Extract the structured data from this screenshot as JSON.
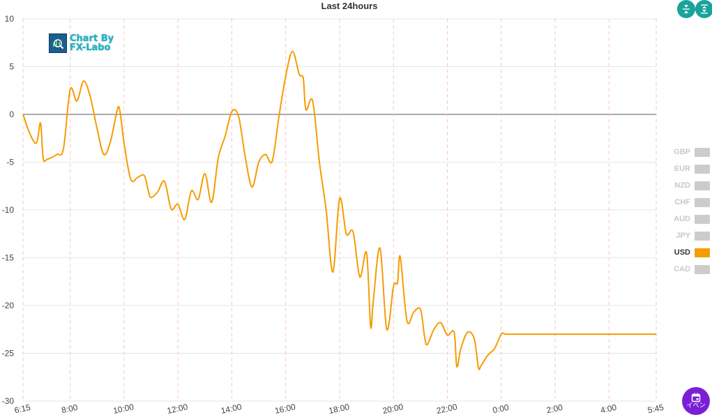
{
  "chart_data": {
    "type": "line",
    "title": "Last 24hours",
    "ylim": [
      -30,
      10
    ],
    "y_ticks": [
      "10",
      "5",
      "0",
      "-5",
      "-10",
      "-15",
      "-20",
      "-25",
      "-30"
    ],
    "x_ticks": [
      "6:15",
      "8:00",
      "10:00",
      "12:00",
      "14:00",
      "16:00",
      "18:00",
      "20:00",
      "22:00",
      "0:00",
      "2:00",
      "4:00",
      "5:45"
    ],
    "grid": true,
    "legend_position": "right",
    "series": [
      {
        "name": "USD",
        "color": "#f59c00",
        "x": [
          0,
          0.25,
          0.5,
          0.65,
          0.75,
          0.9,
          1.25,
          1.5,
          1.75,
          2.0,
          2.25,
          2.5,
          2.75,
          3.0,
          3.25,
          3.5,
          3.6,
          3.75,
          4.0,
          4.25,
          4.5,
          4.65,
          4.75,
          5.0,
          5.25,
          5.5,
          5.75,
          6.0,
          6.25,
          6.5,
          6.75,
          7.0,
          7.25,
          7.5,
          7.75,
          8.0,
          8.25,
          8.5,
          8.75,
          9.0,
          9.25,
          9.5,
          9.75,
          10.0,
          10.25,
          10.4,
          10.5,
          10.75,
          11.0,
          11.25,
          11.5,
          11.75,
          12.0,
          12.25,
          12.5,
          12.75,
          12.9,
          13.0,
          13.25,
          13.5,
          13.75,
          13.9,
          14.0,
          14.25,
          14.5,
          14.75,
          14.9,
          15.0,
          15.25,
          15.5,
          15.75,
          16.0,
          16.1,
          16.25,
          16.5,
          16.75,
          16.9,
          17.0,
          17.25,
          17.5,
          17.75,
          17.9,
          18.0,
          18.25,
          18.5,
          18.75,
          19.0,
          19.25,
          19.5,
          19.75,
          19.9,
          20.0,
          20.25,
          20.5,
          20.75,
          20.9,
          21.0,
          21.25,
          21.5,
          21.75,
          22.0,
          22.1,
          22.25,
          22.5,
          22.75,
          23.0,
          23.25,
          23.4,
          23.5,
          23.75,
          24.0
        ],
        "y": [
          0,
          -2.0,
          -3.0,
          -0.9,
          -4.6,
          -4.7,
          -4.2,
          -3.6,
          2.6,
          1.4,
          3.5,
          1.8,
          -1.5,
          -4.2,
          -2.8,
          0.5,
          0.3,
          -3.0,
          -6.8,
          -6.6,
          -6.4,
          -8.0,
          -8.7,
          -8.1,
          -7.0,
          -9.9,
          -9.4,
          -11.0,
          -8.0,
          -8.9,
          -6.2,
          -9.2,
          -4.5,
          -2.3,
          0.3,
          -0.2,
          -4.5,
          -7.6,
          -5.0,
          -4.2,
          -4.9,
          -0.2,
          4.0,
          6.6,
          4.2,
          3.8,
          0.5,
          1.4,
          -5.0,
          -10.0,
          -16.5,
          -8.8,
          -12.5,
          -12.3,
          -17.0,
          -14.5,
          -22.2,
          -19.5,
          -14.0,
          -22.5,
          -18.0,
          -17.6,
          -14.9,
          -21.6,
          -20.7,
          -20.4,
          -23.2,
          -24.1,
          -22.5,
          -21.8,
          -23.1,
          -22.8,
          -26.4,
          -24.5,
          -22.8,
          -23.5,
          -26.5,
          -26.3,
          -25.2,
          -24.5,
          -23.0,
          -23.0,
          -23.0,
          -23.0,
          -23.0,
          -23.0,
          -23.0,
          -23.0,
          -23.0,
          -23.0,
          -23.0,
          -23.0,
          -23.0,
          -23.0,
          -23.0,
          -23.0,
          -23.0,
          -23.0,
          -23.0,
          -23.0,
          -23.0,
          -23.0,
          -23.0,
          -23.0,
          -23.0,
          -23.0,
          -23.0,
          -23.0,
          -23.0,
          -23.0,
          -23.0
        ]
      }
    ],
    "legend": [
      {
        "name": "GBP",
        "active": false,
        "color": "#cccccc"
      },
      {
        "name": "EUR",
        "active": false,
        "color": "#cccccc"
      },
      {
        "name": "NZD",
        "active": false,
        "color": "#cccccc"
      },
      {
        "name": "CHF",
        "active": false,
        "color": "#cccccc"
      },
      {
        "name": "AUD",
        "active": false,
        "color": "#cccccc"
      },
      {
        "name": "JPY",
        "active": false,
        "color": "#cccccc"
      },
      {
        "name": "USD",
        "active": true,
        "color": "#f59c00"
      },
      {
        "name": "CAD",
        "active": false,
        "color": "#cccccc"
      }
    ]
  },
  "logo": {
    "line1": "Chart By",
    "line2": "FX-Labo"
  },
  "event_button": {
    "label": "イベン",
    "icon": "calendar-icon"
  },
  "toolbar": {
    "collapse_icon": "compress-vertical-icon",
    "expand_icon": "expand-vertical-icon",
    "accent": "#1aa39a"
  }
}
